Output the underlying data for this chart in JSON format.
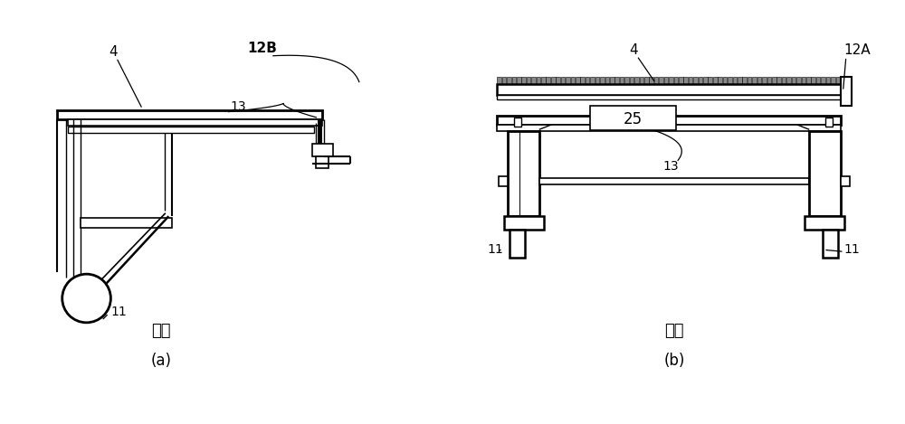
{
  "fig_width": 10.0,
  "fig_height": 4.69,
  "dpi": 100,
  "bg_color": "#ffffff",
  "lc": "#000000",
  "labels": {
    "4a": "4",
    "4b": "4",
    "11a": "11",
    "11b_L": "11",
    "11b_R": "11",
    "12A": "12A",
    "12B": "12B",
    "13a": "13",
    "13b": "13",
    "25": "25",
    "title_a": "側面",
    "title_b": "正面",
    "cap_a": "(a)",
    "cap_b": "(b)"
  }
}
